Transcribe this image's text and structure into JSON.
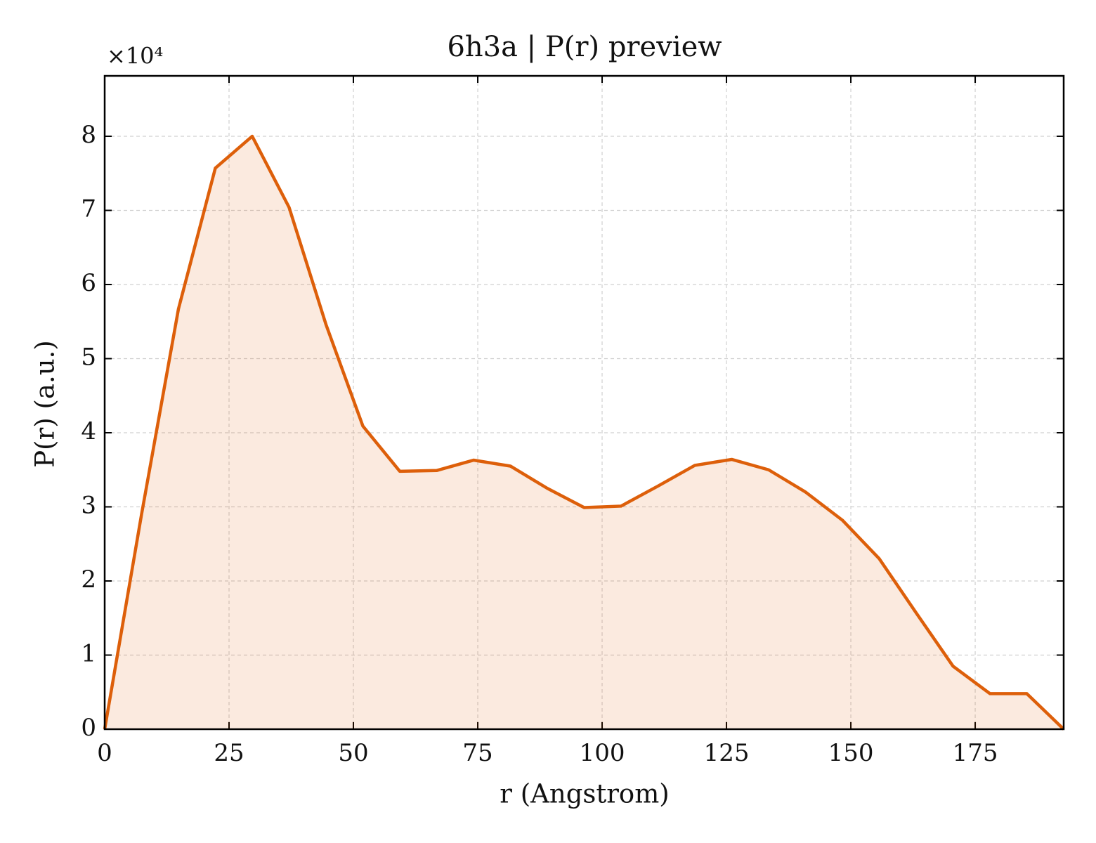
{
  "chart_data": {
    "type": "line",
    "title": "6h3a | P(r) preview",
    "xlabel": "r (Angstrom)",
    "ylabel": "P(r) (a.u.)",
    "y_offset_label": "×10⁴",
    "x": [
      0,
      7.415,
      14.83,
      22.245,
      29.66,
      37.075,
      44.49,
      51.905,
      59.32,
      66.735,
      74.15,
      81.565,
      88.98,
      96.395,
      103.81,
      111.225,
      118.64,
      126.055,
      133.47,
      140.885,
      148.3,
      155.715,
      163.13,
      170.545,
      177.96,
      185.375,
      192.79
    ],
    "series": [
      {
        "name": "P(r)",
        "color": "#dd5f0a",
        "values": [
          0,
          2.9,
          5.67,
          7.57,
          8.0,
          7.04,
          5.46,
          4.09,
          3.48,
          3.49,
          3.63,
          3.55,
          3.25,
          2.99,
          3.01,
          3.28,
          3.56,
          3.64,
          3.5,
          3.2,
          2.82,
          2.3,
          1.57,
          0.85,
          0.48,
          0.48,
          0
        ]
      }
    ],
    "xlim": [
      0,
      192.79
    ],
    "ylim": [
      0,
      8.815
    ],
    "xticks": [
      0,
      25,
      50,
      75,
      100,
      125,
      150,
      175
    ],
    "yticks": [
      0,
      1,
      2,
      3,
      4,
      5,
      6,
      7,
      8
    ],
    "grid": true,
    "fill": true
  }
}
